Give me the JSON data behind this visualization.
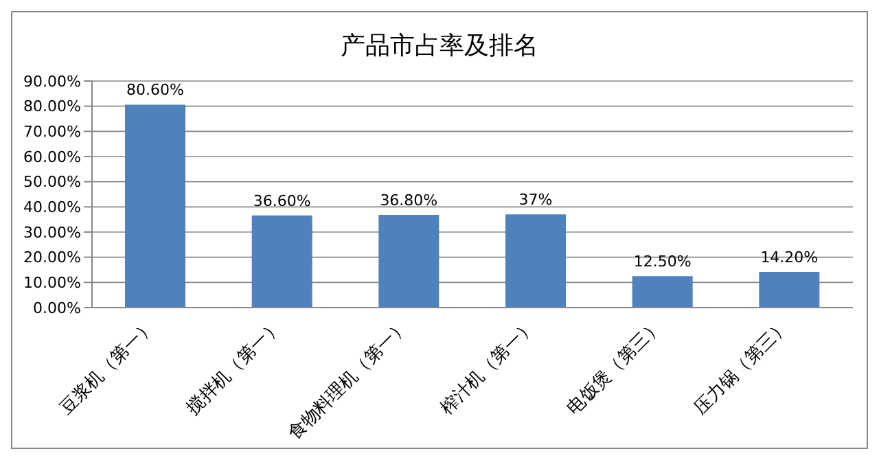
{
  "chart_data": {
    "type": "bar",
    "title": "产品市占率及排名",
    "categories": [
      "豆浆机（第一）",
      "搅拌机（第一）",
      "食物料理机（第一）",
      "榨汁机（第一）",
      "电饭煲（第三）",
      "压力锅（第三）"
    ],
    "values": [
      80.6,
      36.6,
      36.8,
      37,
      12.5,
      14.2
    ],
    "value_labels": [
      "80.60%",
      "36.60%",
      "36.80%",
      "37%",
      "12.50%",
      "14.20%"
    ],
    "color": "#4f81bd",
    "ylim": [
      0,
      90
    ],
    "yticks": [
      {
        "value": 0,
        "label": "0.00%"
      },
      {
        "value": 10,
        "label": "10.00%"
      },
      {
        "value": 20,
        "label": "20.00%"
      },
      {
        "value": 30,
        "label": "30.00%"
      },
      {
        "value": 40,
        "label": "40.00%"
      },
      {
        "value": 50,
        "label": "50.00%"
      },
      {
        "value": 60,
        "label": "60.00%"
      },
      {
        "value": 70,
        "label": "70.00%"
      },
      {
        "value": 80,
        "label": "80.00%"
      },
      {
        "value": 90,
        "label": "90.00%"
      }
    ],
    "grid": "y",
    "legend": false
  }
}
